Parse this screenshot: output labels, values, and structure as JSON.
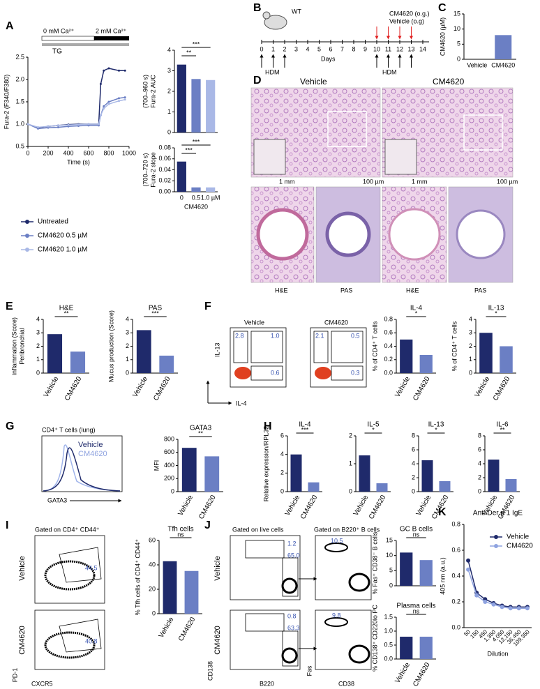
{
  "chart_data": [
    {
      "type": "bar",
      "values": [
        3.3,
        2.6,
        2.55
      ],
      "colors": [
        "#1f2a6b",
        "#6b7fc4",
        "#a9b8e6"
      ],
      "ylabel": [
        "Fura-2 AUC",
        "(700–960 s)"
      ],
      "ylim": [
        0,
        4
      ],
      "yticks": [
        0,
        1,
        2,
        3,
        4
      ],
      "annotations": [
        "***",
        "**"
      ]
    },
    {
      "type": "bar",
      "categories": [
        "0",
        "0.5",
        "1.0 µM"
      ],
      "xlabel": "CM4620",
      "values": [
        0.055,
        0.008,
        0.008
      ],
      "colors": [
        "#1f2a6b",
        "#6b7fc4",
        "#a9b8e6"
      ],
      "ylabel": [
        "Fura-2 slope",
        "(700–720 s)"
      ],
      "ylim": [
        0,
        0.08
      ],
      "yticks": [
        {
          "value": 0,
          "label": "0.00"
        },
        {
          "value": 0.02,
          "label": "0.02"
        },
        {
          "value": 0.04,
          "label": "0.04"
        },
        {
          "value": 0.06,
          "label": "0.06"
        },
        {
          "value": 0.08,
          "label": "0.08"
        }
      ],
      "annotations": [
        "***",
        "***"
      ]
    },
    {
      "type": "line",
      "xlabel": "Time (s)",
      "ylabel": [
        "Fura-2 (F340/F380)"
      ],
      "x": [
        0,
        100,
        200,
        300,
        400,
        500,
        600,
        700,
        720,
        750,
        800,
        900,
        960
      ],
      "xlim": [
        0,
        1000
      ],
      "xticks": [
        0,
        200,
        400,
        600,
        800,
        1000
      ],
      "ylim": [
        0.5,
        2.5
      ],
      "yticks": [
        0.5,
        {
          "value": 1,
          "label": "1.0"
        },
        1.5,
        {
          "value": 2,
          "label": "2.0"
        },
        2.5
      ],
      "legend": "below",
      "series": [
        {
          "name": "Untreated",
          "color": "#1f2a6b",
          "values": [
            1.0,
            0.92,
            0.95,
            0.97,
            0.99,
            1.0,
            1.0,
            1.0,
            1.9,
            2.2,
            2.25,
            2.2,
            2.2
          ]
        },
        {
          "name": "CM4620 0.5 µM",
          "color": "#6b7fc4",
          "values": [
            1.0,
            0.9,
            0.92,
            0.93,
            0.95,
            0.96,
            0.97,
            0.97,
            1.2,
            1.4,
            1.5,
            1.58,
            1.6
          ]
        },
        {
          "name": "CM4620 1.0 µM",
          "color": "#a9b8e6",
          "values": [
            1.0,
            0.93,
            0.95,
            0.97,
            0.98,
            0.99,
            1.0,
            1.0,
            1.2,
            1.35,
            1.45,
            1.52,
            1.55
          ]
        }
      ]
    },
    {
      "type": "bar",
      "categories": [
        "Vehicle",
        "CM4620"
      ],
      "horizontal_labels": true,
      "values": [
        0,
        8
      ],
      "colors": [
        "#1f2a6b",
        "#6b7fc4"
      ],
      "ylabel": [
        "CM4620 (µM)"
      ],
      "ylim": [
        0,
        15
      ],
      "yticks": [
        0,
        5,
        10,
        15
      ]
    },
    {
      "type": "bar",
      "title": "H&E",
      "categories": [
        "Vehicle",
        "CM4620"
      ],
      "values": [
        2.9,
        1.6
      ],
      "colors": [
        "#1f2a6b",
        "#6b7fc4"
      ],
      "ylabel": [
        "Peribronchial",
        "inflammation (Score)"
      ],
      "ylim": [
        0,
        4
      ],
      "yticks": [
        0,
        1,
        2,
        3,
        4
      ],
      "annotations": [
        "**"
      ]
    },
    {
      "type": "bar",
      "title": "PAS",
      "categories": [
        "Vehicle",
        "CM4620"
      ],
      "values": [
        3.2,
        1.3
      ],
      "colors": [
        "#1f2a6b",
        "#6b7fc4"
      ],
      "ylabel": [
        "Mucus production (Score)"
      ],
      "ylim": [
        0,
        4
      ],
      "yticks": [
        0,
        1,
        2,
        3,
        4
      ],
      "annotations": [
        "***"
      ]
    },
    {
      "type": "bar",
      "title": "IL-4",
      "categories": [
        "Vehicle",
        "CM4620"
      ],
      "values": [
        0.5,
        0.27
      ],
      "colors": [
        "#1f2a6b",
        "#6b7fc4"
      ],
      "ylabel": [
        "% of CD4⁺ T cells"
      ],
      "ylim": [
        0,
        0.8
      ],
      "yticks": [
        {
          "value": 0,
          "label": "0.0"
        },
        0.2,
        0.4,
        0.6,
        0.8
      ],
      "annotations": [
        "*"
      ]
    },
    {
      "type": "bar",
      "title": "IL-13",
      "categories": [
        "Vehicle",
        "CM4620"
      ],
      "values": [
        3.0,
        2.0
      ],
      "colors": [
        "#1f2a6b",
        "#6b7fc4"
      ],
      "ylabel": [
        "% of CD4⁺ T cells"
      ],
      "ylim": [
        0,
        4
      ],
      "yticks": [
        0,
        1,
        2,
        3,
        4
      ],
      "annotations": [
        "*"
      ]
    },
    {
      "type": "bar",
      "title": "GATA3",
      "categories": [
        "Vehicle",
        "CM4620"
      ],
      "values": [
        670,
        540
      ],
      "colors": [
        "#1f2a6b",
        "#6b7fc4"
      ],
      "ylabel": [
        "MFI"
      ],
      "ylim": [
        0,
        800
      ],
      "yticks": [
        0,
        200,
        400,
        600,
        800
      ],
      "annotations": [
        "**"
      ]
    },
    {
      "type": "bar",
      "title": "IL-4",
      "categories": [
        "Vehicle",
        "CM4620"
      ],
      "values": [
        4.0,
        1.0
      ],
      "colors": [
        "#1f2a6b",
        "#6b7fc4"
      ],
      "ylabel": [
        "Relative expression/RPL32"
      ],
      "ylim": [
        0,
        6
      ],
      "yticks": [
        0,
        2,
        4,
        6
      ],
      "annotations": [
        "***"
      ]
    },
    {
      "type": "bar",
      "title": "IL-5",
      "categories": [
        "Vehicle",
        "CM4620"
      ],
      "values": [
        1.3,
        0.3
      ],
      "colors": [
        "#1f2a6b",
        "#6b7fc4"
      ],
      "ylim": [
        0,
        2
      ],
      "yticks": [
        0,
        1,
        2
      ],
      "annotations": [
        "*"
      ]
    },
    {
      "type": "bar",
      "title": "IL-13",
      "categories": [
        "Vehicle",
        "CM4620"
      ],
      "values": [
        4.5,
        1.5
      ],
      "colors": [
        "#1f2a6b",
        "#6b7fc4"
      ],
      "ylim": [
        0,
        8
      ],
      "yticks": [
        0,
        2,
        4,
        6,
        8
      ],
      "annotations": [
        "*"
      ]
    },
    {
      "type": "bar",
      "title": "IL-6",
      "categories": [
        "Vehicle",
        "CM4620"
      ],
      "values": [
        4.6,
        1.8
      ],
      "colors": [
        "#1f2a6b",
        "#6b7fc4"
      ],
      "ylim": [
        0,
        8
      ],
      "yticks": [
        0,
        2,
        4,
        6,
        8
      ],
      "annotations": [
        "**"
      ]
    },
    {
      "type": "bar",
      "title": "Tfh cells",
      "categories": [
        "Vehicle",
        "CM4620"
      ],
      "values": [
        43,
        35
      ],
      "colors": [
        "#1f2a6b",
        "#6b7fc4"
      ],
      "ylabel": [
        "% Tfh cells of CD4⁺ CD44⁺"
      ],
      "ylim": [
        0,
        60
      ],
      "yticks": [
        0,
        20,
        40,
        60
      ],
      "annotations": [
        "ns"
      ]
    },
    {
      "type": "bar",
      "title": "GC B cells",
      "values": [
        11,
        8.5
      ],
      "colors": [
        "#1f2a6b",
        "#6b7fc4"
      ],
      "ylabel": [
        "% Fas⁺ CD38⁻ B cells"
      ],
      "ylim": [
        0,
        15
      ],
      "yticks": [
        0,
        5,
        10,
        15
      ],
      "annotations": [
        "ns"
      ]
    },
    {
      "type": "bar",
      "title": "Plasma cells",
      "categories": [
        "Vehicle",
        "CM4620"
      ],
      "values": [
        0.8,
        0.8
      ],
      "colors": [
        "#1f2a6b",
        "#6b7fc4"
      ],
      "ylabel": [
        "% CD138⁺ CD220lo PC"
      ],
      "ylim": [
        0,
        1.5
      ],
      "yticks": [
        {
          "value": 0,
          "label": "0.0"
        },
        0.5,
        {
          "value": 1,
          "label": "1.0"
        },
        1.5
      ],
      "annotations": [
        "ns"
      ]
    },
    {
      "type": "line",
      "title": "Anti-Der p 1 IgE",
      "xlabel": "Dilution",
      "ylabel": [
        "405 nm (a.u.)"
      ],
      "categories": [
        "50",
        "150",
        "450",
        "1,350",
        "4,050",
        "12,150",
        "36,450",
        "109,350"
      ],
      "ylim": [
        0,
        0.8
      ],
      "yticks": [
        {
          "value": 0,
          "label": "0.0"
        },
        0.2,
        0.4,
        0.6,
        0.8
      ],
      "legend": "upper right",
      "series": [
        {
          "name": "Vehicle",
          "color": "#1f2a6b",
          "values": [
            0.52,
            0.27,
            0.22,
            0.19,
            0.17,
            0.16,
            0.16,
            0.16
          ]
        },
        {
          "name": "CM4620",
          "color": "#8fa3e0",
          "values": [
            0.45,
            0.25,
            0.2,
            0.18,
            0.16,
            0.15,
            0.15,
            0.15
          ]
        }
      ]
    }
  ],
  "figure": {
    "labels": [
      "A",
      "B",
      "C",
      "D",
      "E",
      "F",
      "G",
      "H",
      "I",
      "J",
      "K",
      "0 mM Ca²⁺",
      "2 mM Ca²⁺",
      "TG",
      "WT",
      "Days",
      "HDM",
      "HDM",
      "CM4620 (o.g.)",
      "Vehicle (o.g)",
      "Vehicle",
      "CM4620",
      "1 mm",
      "100 µm",
      "1 mm",
      "100 µm",
      "H&E",
      "PAS",
      "H&E",
      "PAS",
      "Vehicle",
      "CM4620",
      "IL-13",
      "IL-4",
      "2.8",
      "1.0",
      "0.6",
      "2.1",
      "0.5",
      "0.3",
      "CD4⁺ T cells (lung)",
      "Vehicle",
      "CM4620",
      "GATA3",
      "Gated on CD4⁺ CD44⁺",
      "Vehicle",
      "CM4620",
      "44.5",
      "40.8",
      "PD-1",
      "CXCR5",
      "Gated on live cells",
      "Gated on B220⁺ B cells",
      "Vehicle",
      "CM4620",
      "1.2",
      "65.0",
      "10.5",
      "0.8",
      "63.3",
      "9.8",
      "CD138",
      "B220",
      "Fas",
      "CD38"
    ],
    "days": [
      0,
      1,
      2,
      3,
      4,
      5,
      6,
      7,
      8,
      9,
      10,
      11,
      12,
      13,
      14
    ]
  }
}
